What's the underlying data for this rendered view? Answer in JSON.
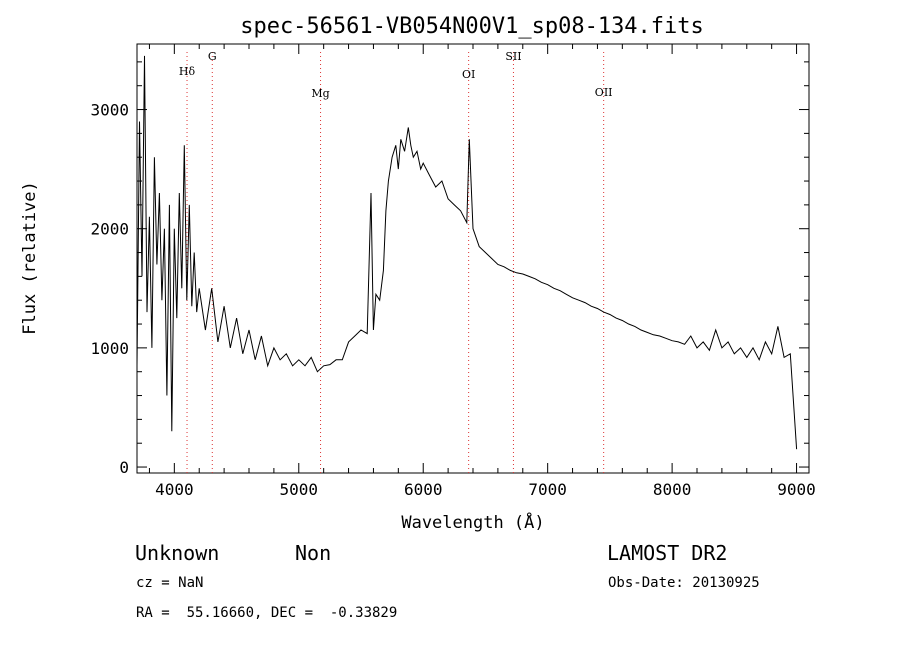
{
  "chart_data": {
    "type": "line",
    "title": "spec-56561-VB054N00V1_sp08-134.fits",
    "xlabel": "Wavelength (Å)",
    "ylabel": "Flux (relative)",
    "xlim": [
      3700,
      9100
    ],
    "ylim": [
      -50,
      3550
    ],
    "xticks": [
      4000,
      5000,
      6000,
      7000,
      8000,
      9000
    ],
    "yticks": [
      0,
      1000,
      2000,
      3000
    ],
    "grid": false,
    "series": [
      {
        "values_x": [
          3700,
          3720,
          3740,
          3760,
          3780,
          3800,
          3820,
          3840,
          3860,
          3880,
          3900,
          3920,
          3940,
          3960,
          3980,
          4000,
          4020,
          4040,
          4060,
          4080,
          4100,
          4120,
          4140,
          4160,
          4180,
          4200,
          4250,
          4300,
          4350,
          4400,
          4450,
          4500,
          4550,
          4600,
          4650,
          4700,
          4750,
          4800,
          4850,
          4900,
          4950,
          5000,
          5050,
          5100,
          5150,
          5200,
          5250,
          5300,
          5350,
          5400,
          5450,
          5500,
          5550,
          5580,
          5600,
          5620,
          5650,
          5680,
          5700,
          5720,
          5750,
          5780,
          5800,
          5820,
          5850,
          5880,
          5900,
          5920,
          5950,
          5980,
          6000,
          6050,
          6100,
          6150,
          6200,
          6250,
          6300,
          6350,
          6370,
          6400,
          6450,
          6500,
          6550,
          6600,
          6650,
          6700,
          6750,
          6800,
          6850,
          6900,
          6950,
          7000,
          7050,
          7100,
          7150,
          7200,
          7250,
          7300,
          7350,
          7400,
          7450,
          7500,
          7550,
          7600,
          7650,
          7700,
          7750,
          7800,
          7850,
          7900,
          7950,
          8000,
          8050,
          8100,
          8150,
          8200,
          8250,
          8300,
          8350,
          8400,
          8450,
          8500,
          8550,
          8600,
          8650,
          8700,
          8750,
          8800,
          8850,
          8900,
          8950,
          9000
        ],
        "values_y": [
          850,
          2900,
          1600,
          3450,
          1300,
          2100,
          1000,
          2600,
          1700,
          2300,
          1400,
          2000,
          600,
          2200,
          300,
          2000,
          1250,
          2300,
          1500,
          2700,
          1400,
          2200,
          1350,
          1800,
          1300,
          1500,
          1150,
          1500,
          1050,
          1350,
          1000,
          1250,
          950,
          1150,
          900,
          1100,
          850,
          1000,
          900,
          950,
          850,
          900,
          850,
          920,
          800,
          850,
          860,
          900,
          900,
          1050,
          1100,
          1150,
          1120,
          2300,
          1150,
          1450,
          1400,
          1650,
          2150,
          2400,
          2600,
          2700,
          2500,
          2750,
          2650,
          2850,
          2700,
          2600,
          2650,
          2500,
          2550,
          2450,
          2350,
          2400,
          2250,
          2200,
          2150,
          2050,
          2750,
          2000,
          1850,
          1800,
          1750,
          1700,
          1680,
          1650,
          1630,
          1620,
          1600,
          1580,
          1550,
          1530,
          1500,
          1480,
          1450,
          1420,
          1400,
          1380,
          1350,
          1330,
          1300,
          1280,
          1250,
          1230,
          1200,
          1180,
          1150,
          1130,
          1110,
          1100,
          1080,
          1060,
          1050,
          1030,
          1100,
          1000,
          1050,
          980,
          1150,
          1000,
          1050,
          950,
          1000,
          920,
          1000,
          900,
          1050,
          950,
          1180,
          920,
          950,
          150
        ]
      }
    ],
    "line_markers": [
      {
        "label": "Hδ",
        "x": 4102
      },
      {
        "label": "G",
        "x": 4305
      },
      {
        "label": "Mg",
        "x": 5175
      },
      {
        "label": "OI",
        "x": 6365
      },
      {
        "label": "SII",
        "x": 6725
      },
      {
        "label": "OII",
        "x": 7450
      }
    ]
  },
  "info": {
    "class": "Unknown",
    "subclass": "Non",
    "survey": "LAMOST DR2",
    "cz": "cz = NaN",
    "obsdate": "Obs-Date: 20130925",
    "radec": "RA =  55.16660, DEC =  -0.33829"
  }
}
